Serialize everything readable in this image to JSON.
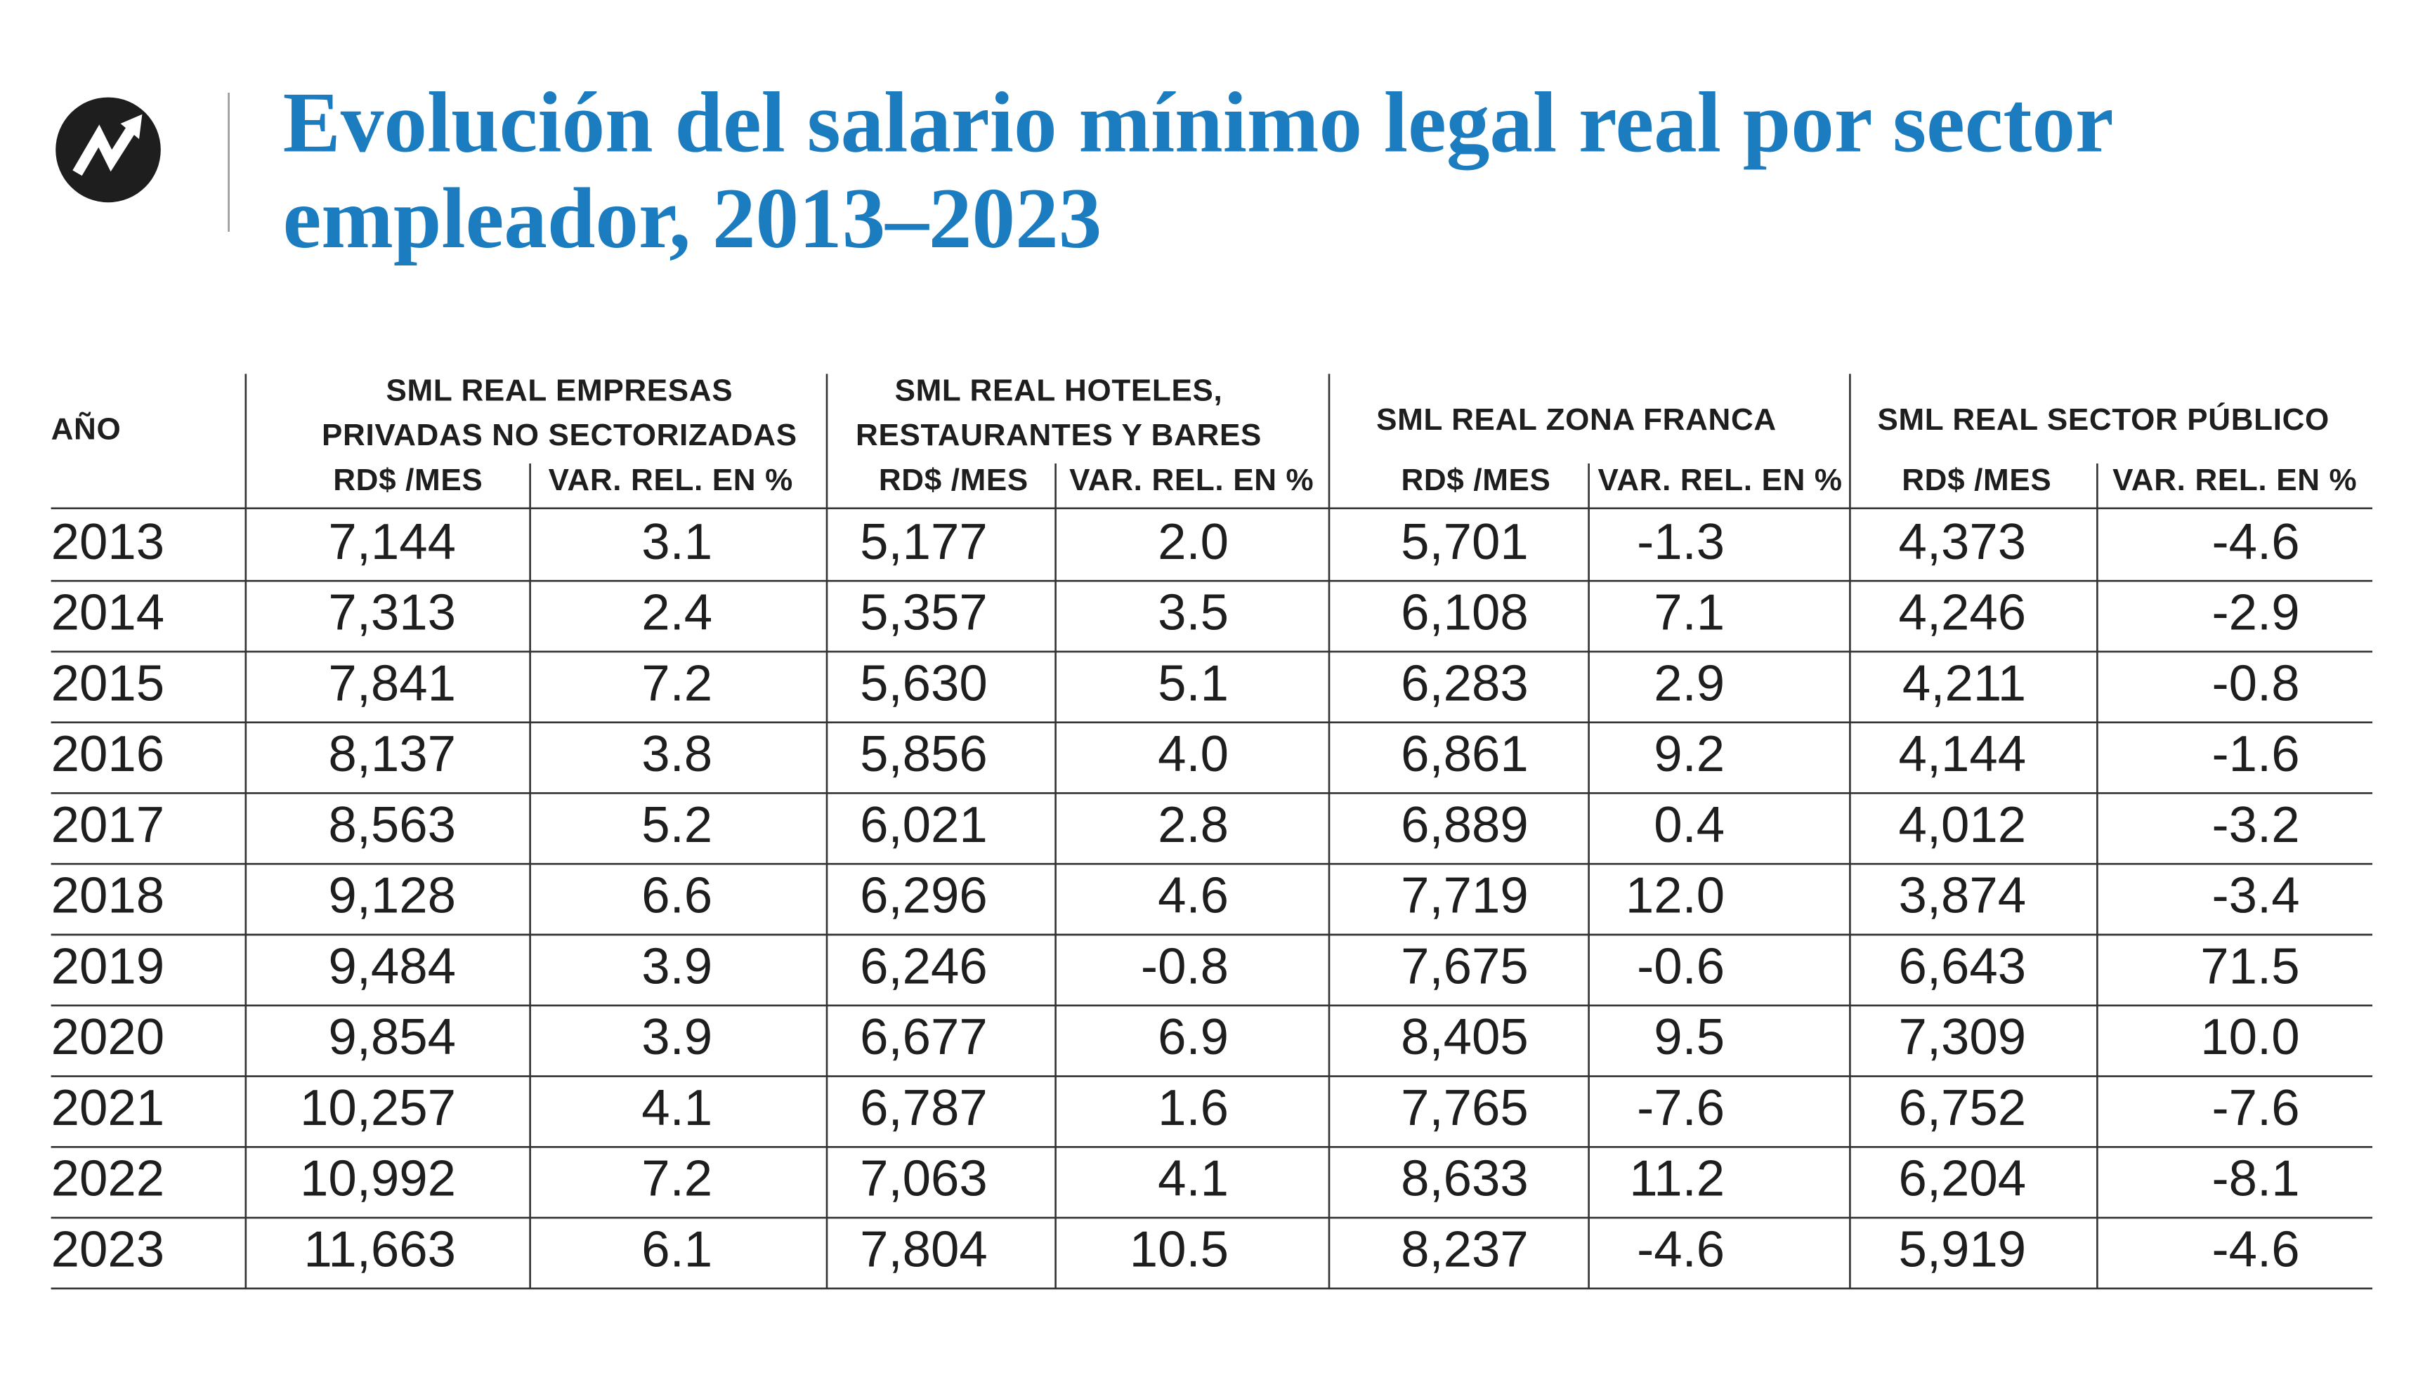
{
  "header": {
    "title_lines": [
      "Evolución del salario mínimo legal real por sector",
      "empleador, 2013–2023"
    ]
  },
  "table": {
    "year_header": "AÑO",
    "groups": [
      [
        "SML REAL EMPRESAS",
        "PRIVADAS NO SECTORIZADAS"
      ],
      [
        "SML REAL HOTELES,",
        "RESTAURANTES Y BARES"
      ],
      [
        "SML REAL ZONA FRANCA"
      ],
      [
        "SML REAL SECTOR PÚBLICO"
      ]
    ],
    "subheaders": [
      "RD$ /MES",
      "VAR. REL. EN %",
      "RD$ /MES",
      "VAR. REL. EN %",
      "RD$ /MES",
      "VAR. REL. EN %",
      "RD$ /MES",
      "VAR. REL. EN %"
    ],
    "rows": [
      [
        "2013",
        "7,144",
        "3.1",
        "5,177",
        "2.0",
        "5,701",
        "-1.3",
        "4,373",
        "-4.6"
      ],
      [
        "2014",
        "7,313",
        "2.4",
        "5,357",
        "3.5",
        "6,108",
        "7.1",
        "4,246",
        "-2.9"
      ],
      [
        "2015",
        "7,841",
        "7.2",
        "5,630",
        "5.1",
        "6,283",
        "2.9",
        "4,211",
        "-0.8"
      ],
      [
        "2016",
        "8,137",
        "3.8",
        "5,856",
        "4.0",
        "6,861",
        "9.2",
        "4,144",
        "-1.6"
      ],
      [
        "2017",
        "8,563",
        "5.2",
        "6,021",
        "2.8",
        "6,889",
        "0.4",
        "4,012",
        "-3.2"
      ],
      [
        "2018",
        "9,128",
        "6.6",
        "6,296",
        "4.6",
        "7,719",
        "12.0",
        "3,874",
        "-3.4"
      ],
      [
        "2019",
        "9,484",
        "3.9",
        "6,246",
        "-0.8",
        "7,675",
        "-0.6",
        "6,643",
        "71.5"
      ],
      [
        "2020",
        "9,854",
        "3.9",
        "6,677",
        "6.9",
        "8,405",
        "9.5",
        "7,309",
        "10.0"
      ],
      [
        "2021",
        "10,257",
        "4.1",
        "6,787",
        "1.6",
        "7,765",
        "-7.6",
        "6,752",
        "-7.6"
      ],
      [
        "2022",
        "10,992",
        "7.2",
        "7,063",
        "4.1",
        "8,633",
        "11.2",
        "6,204",
        "-8.1"
      ],
      [
        "2023",
        "11,663",
        "6.1",
        "7,804",
        "10.5",
        "8,237",
        "-4.6",
        "5,919",
        "-4.6"
      ]
    ]
  }
}
